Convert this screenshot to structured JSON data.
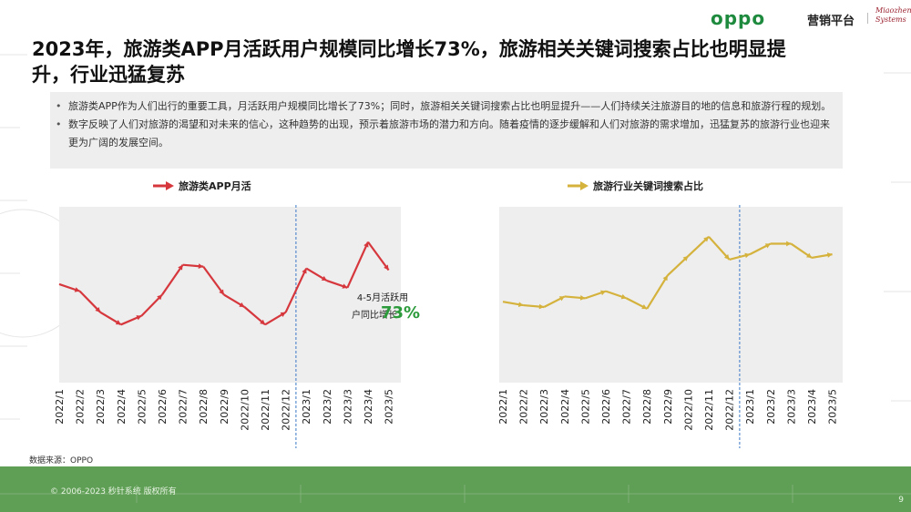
{
  "header": {
    "brand": "oppo",
    "platform": "营销平台",
    "sub_brand": "Miaozhen Systems"
  },
  "title": "2023年，旅游类APP月活跃用户规模同比增长73%，旅游相关关键词搜索占比也明显提升，行业迅猛复苏",
  "summary": [
    "旅游类APP作为人们出行的重要工具，月活跃用户规模同比增长了73%；同时，旅游相关关键词搜索占比也明显提升——人们持续关注旅游目的地的信息和旅游行程的规划。",
    "数字反映了人们对旅游的渴望和对未来的信心，这种趋势的出现，预示着旅游市场的潜力和方向。随着疫情的逐步缓解和人们对旅游的需求增加，迅猛复苏的旅游行业也迎来更为广阔的发展空间。"
  ],
  "chart_data": [
    {
      "type": "line",
      "legend": "旅游类APP月活",
      "color": "#d6373d",
      "categories": [
        "2022/1",
        "2022/2",
        "2022/3",
        "2022/4",
        "2022/5",
        "2022/6",
        "2022/7",
        "2022/8",
        "2022/9",
        "2022/10",
        "2022/11",
        "2022/12",
        "2023/1",
        "2023/2",
        "2023/3",
        "2023/4",
        "2023/5"
      ],
      "values": [
        56,
        52,
        40,
        33,
        38,
        50,
        67,
        66,
        50,
        43,
        33,
        40,
        65,
        58,
        54,
        80,
        64
      ],
      "ylim": [
        0,
        100
      ],
      "yaxis_labels_shown": false,
      "divider_after": "2022/12",
      "annotation": {
        "text": "4-5月活跃用户同比增长",
        "value": "73%",
        "value_color": "#2b9a3a"
      }
    },
    {
      "type": "line",
      "legend": "旅游行业关键词搜索占比",
      "color": "#d4b23c",
      "categories": [
        "2022/1",
        "2022/2",
        "2022/3",
        "2022/4",
        "2022/5",
        "2022/6",
        "2022/7",
        "2022/8",
        "2022/9",
        "2022/10",
        "2022/11",
        "2022/12",
        "2023/1",
        "2023/2",
        "2023/3",
        "2023/4",
        "2023/5"
      ],
      "values": [
        46,
        44,
        43,
        49,
        48,
        52,
        48,
        42,
        61,
        72,
        83,
        70,
        73,
        79,
        79,
        71,
        73
      ],
      "ylim": [
        0,
        100
      ],
      "yaxis_labels_shown": false,
      "divider_after": "2022/12"
    }
  ],
  "source": "数据来源：OPPO",
  "footer": {
    "copyright": "© 2006-2023 秒针系统 版权所有",
    "page": "9"
  }
}
